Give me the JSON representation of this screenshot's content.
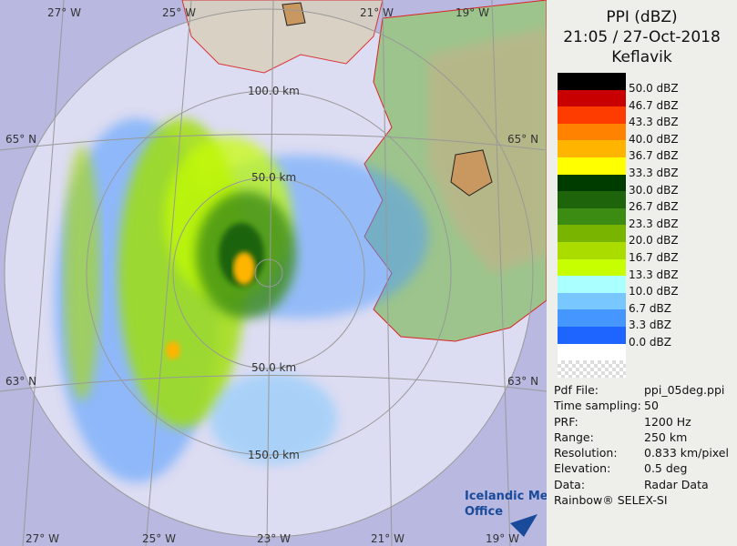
{
  "header": {
    "title": "PPI (dBZ)",
    "time": "21:05 / 27-Oct-2018",
    "site": "Keflavik"
  },
  "legend": [
    {
      "label": "50.0 dBZ",
      "color": "#000000"
    },
    {
      "label": "46.7 dBZ",
      "color": "#c80000"
    },
    {
      "label": "43.3 dBZ",
      "color": "#ff3c00"
    },
    {
      "label": "40.0 dBZ",
      "color": "#ff8200"
    },
    {
      "label": "36.7 dBZ",
      "color": "#ffb400"
    },
    {
      "label": "33.3 dBZ",
      "color": "#ffff00"
    },
    {
      "label": "30.0 dBZ",
      "color": "#003c00"
    },
    {
      "label": "26.7 dBZ",
      "color": "#1e640a"
    },
    {
      "label": "23.3 dBZ",
      "color": "#3c8c14"
    },
    {
      "label": "20.0 dBZ",
      "color": "#78b400"
    },
    {
      "label": "16.7 dBZ",
      "color": "#aadc00"
    },
    {
      "label": "13.3 dBZ",
      "color": "#c8ff00"
    },
    {
      "label": "10.0 dBZ",
      "color": "#aaffff"
    },
    {
      "label": "6.7 dBZ",
      "color": "#78c8ff"
    },
    {
      "label": "3.3 dBZ",
      "color": "#4696ff"
    },
    {
      "label": "0.0 dBZ",
      "color": "#1e64ff"
    }
  ],
  "info": [
    [
      "Pdf File:",
      "ppi_05deg.ppi"
    ],
    [
      "Time sampling:",
      "50"
    ],
    [
      "PRF:",
      "1200 Hz"
    ],
    [
      "Range:",
      "250 km"
    ],
    [
      "Resolution:",
      "0.833 km/pixel"
    ],
    [
      "Elevation:",
      "0.5 deg"
    ],
    [
      "Data:",
      "Radar Data"
    ]
  ],
  "credit": "Rainbow® SELEX-SI",
  "logo": [
    "Icelandic Met",
    "Office"
  ],
  "map": {
    "lon_top": [
      "27° W",
      "25° W",
      "21° W",
      "19° W"
    ],
    "lon_bottom": [
      "27° W",
      "25° W",
      "23° W",
      "21° W",
      "19° W"
    ],
    "lat_left": [
      "65° N",
      "63° N"
    ],
    "lat_right": [
      "65° N",
      "63° N"
    ],
    "rings": [
      "100.0 km",
      "50.0 km",
      "50.0 km",
      "150.0 km"
    ]
  }
}
